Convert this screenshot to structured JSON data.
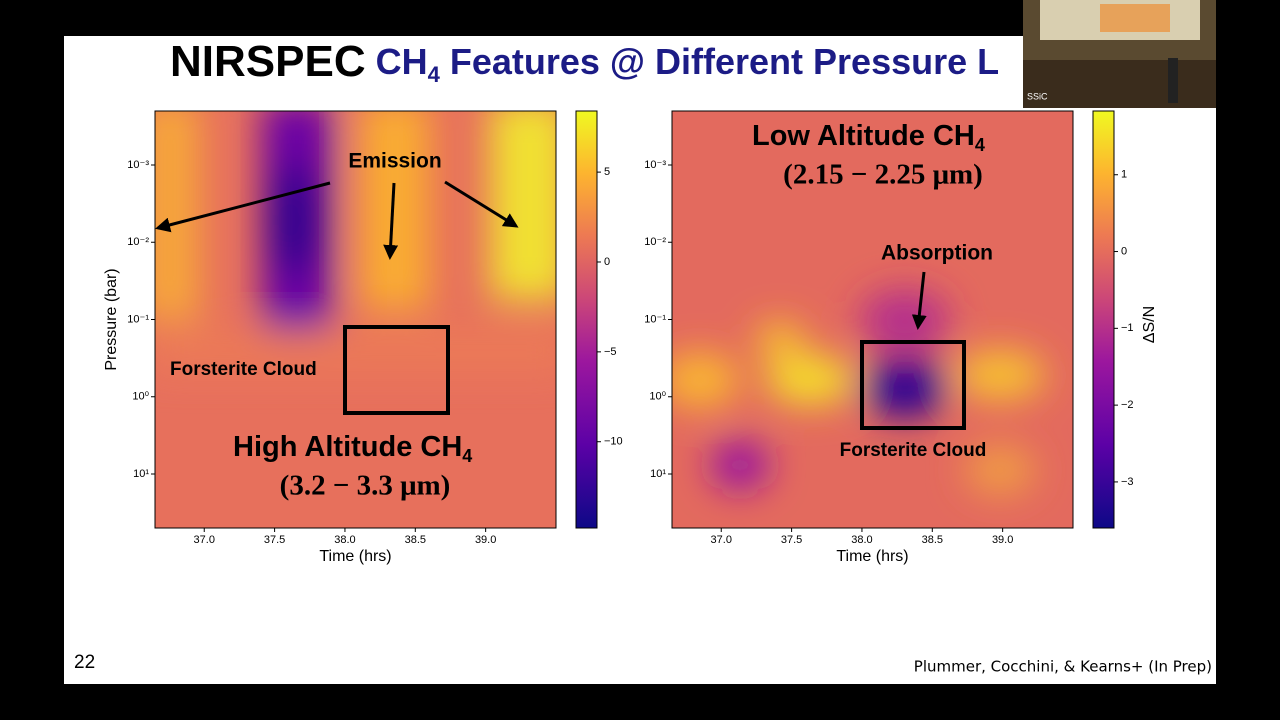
{
  "slide": {
    "title_main": "NIRSPEC",
    "title_rest": "CH",
    "title_rest_subscript": "4",
    "title_end": " Features @ Different Pressure L",
    "page_number": "22",
    "citation": "Plummer, Cocchini, & Kearns+ (In Prep)",
    "webcam_label": "SSiC"
  },
  "chart_data": [
    {
      "type": "heatmap",
      "title": "High Altitude CH",
      "title_subscript": "4",
      "subtitle": "(3.2 − 3.3 μm)",
      "x_label": "Time (hrs)",
      "y_label": "Pressure (bar)",
      "annotations": [
        "Emission",
        "Forsterite Cloud"
      ],
      "xlim": [
        36.65,
        39.5
      ],
      "xticks": [
        {
          "value": 37,
          "label": "37.0"
        },
        {
          "value": 37.5,
          "label": "37.5"
        },
        {
          "value": 38,
          "label": "38.0"
        },
        {
          "value": 38.5,
          "label": "38.5"
        },
        {
          "value": 39,
          "label": "39.0"
        }
      ],
      "y_log": true,
      "y_inverted": true,
      "ylim": [
        0.0002,
        50
      ],
      "yticks": [
        {
          "value": 0.001,
          "label": "10⁻³"
        },
        {
          "value": 0.01,
          "label": "10⁻²"
        },
        {
          "value": 0.1,
          "label": "10⁻¹"
        },
        {
          "value": 1,
          "label": "10⁰"
        },
        {
          "value": 10,
          "label": "10¹"
        }
      ],
      "clim": [
        -14.8,
        8.4
      ],
      "cticks": [
        5,
        0,
        {
          "value": -5,
          "label": "−5"
        },
        {
          "value": -10,
          "label": "−10"
        }
      ]
    },
    {
      "type": "heatmap",
      "title": "Low Altitude CH",
      "title_subscript": "4",
      "subtitle": "(2.15 − 2.25 μm)",
      "x_label": "Time (hrs)",
      "colorbar_label": "ΔS/N",
      "annotations": [
        "Absorption",
        "Forsterite Cloud"
      ],
      "xlim": [
        36.65,
        39.5
      ],
      "xticks": [
        {
          "value": 37,
          "label": "37.0"
        },
        {
          "value": 37.5,
          "label": "37.5"
        },
        {
          "value": 38,
          "label": "38.0"
        },
        {
          "value": 38.5,
          "label": "38.5"
        },
        {
          "value": 39,
          "label": "39.0"
        }
      ],
      "y_log": true,
      "y_inverted": true,
      "ylim": [
        0.0002,
        50
      ],
      "yticks": [
        {
          "value": 0.001,
          "label": "10⁻³"
        },
        {
          "value": 0.01,
          "label": "10⁻²"
        },
        {
          "value": 0.1,
          "label": "10⁻¹"
        },
        {
          "value": 1,
          "label": "10⁰"
        },
        {
          "value": 10,
          "label": "10¹"
        }
      ],
      "clim": [
        -3.6,
        1.83
      ],
      "cticks": [
        1,
        0,
        {
          "value": -1,
          "label": "−1"
        },
        {
          "value": -2,
          "label": "−2"
        },
        {
          "value": -3,
          "label": "−3"
        }
      ]
    }
  ]
}
